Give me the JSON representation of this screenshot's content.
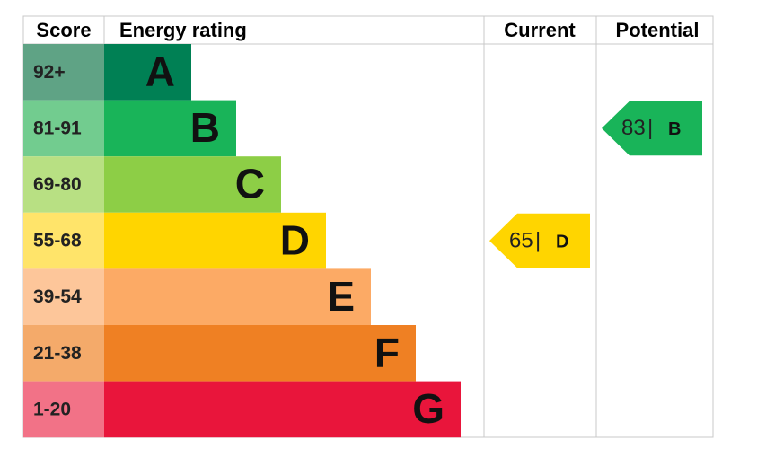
{
  "chart_data": {
    "type": "epc",
    "headers": {
      "score": "Score",
      "rating": "Energy rating",
      "current": "Current",
      "potential": "Potential"
    },
    "bands": [
      {
        "score": "92+",
        "letter": "A",
        "color": "#008054",
        "score_color": "#5fa385"
      },
      {
        "score": "81-91",
        "letter": "B",
        "color": "#19b459",
        "score_color": "#72cc8f"
      },
      {
        "score": "69-80",
        "letter": "C",
        "color": "#8dce46",
        "score_color": "#b8e083"
      },
      {
        "score": "55-68",
        "letter": "D",
        "color": "#ffd500",
        "score_color": "#ffe46a"
      },
      {
        "score": "39-54",
        "letter": "E",
        "color": "#fcaa65",
        "score_color": "#fdc69a"
      },
      {
        "score": "21-38",
        "letter": "F",
        "color": "#ef8023",
        "score_color": "#f4aa6a"
      },
      {
        "score": "1-20",
        "letter": "G",
        "color": "#e9153b",
        "score_color": "#f27287"
      }
    ],
    "current": {
      "score": 65,
      "separator": "|",
      "rating": "D"
    },
    "potential": {
      "score": 83,
      "separator": "|",
      "rating": "B"
    }
  }
}
